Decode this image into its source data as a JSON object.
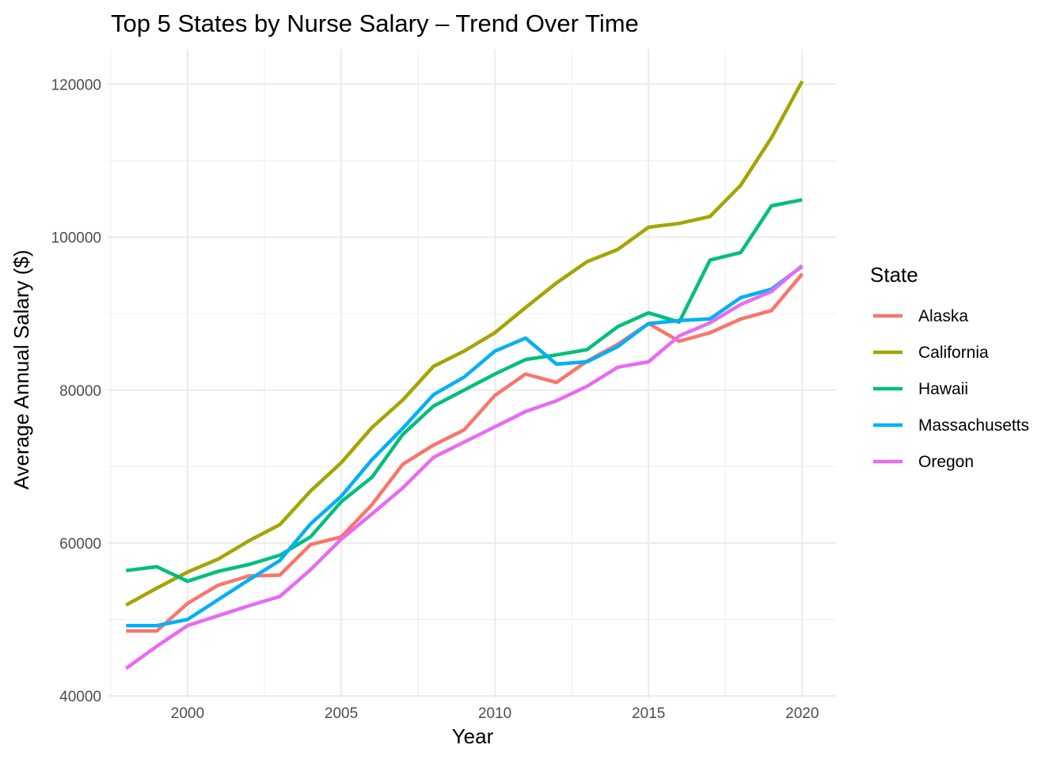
{
  "chart_data": {
    "type": "line",
    "title": "Top 5 States by Nurse Salary – Trend Over Time",
    "xlabel": "Year",
    "ylabel": "Average Annual Salary ($)",
    "xlim": [
      1997.4,
      2021.1
    ],
    "ylim": [
      39700,
      124600
    ],
    "x_ticks": [
      2000,
      2005,
      2010,
      2015,
      2020
    ],
    "y_ticks": [
      40000,
      60000,
      80000,
      100000,
      120000
    ],
    "grid": true,
    "legend_title": "State",
    "legend_position": "right",
    "x": [
      1998,
      1999,
      2000,
      2001,
      2002,
      2003,
      2004,
      2005,
      2006,
      2007,
      2008,
      2009,
      2010,
      2011,
      2012,
      2013,
      2014,
      2015,
      2016,
      2017,
      2018,
      2019,
      2020
    ],
    "series": [
      {
        "name": "Alaska",
        "color": "#F8766D",
        "values": [
          48500,
          48500,
          52100,
          54500,
          55700,
          55800,
          59800,
          60800,
          65000,
          70300,
          72800,
          74800,
          79300,
          82100,
          81000,
          83800,
          86000,
          88700,
          86400,
          87500,
          89300,
          90400,
          95200
        ]
      },
      {
        "name": "California",
        "color": "#A3A500",
        "values": [
          51900,
          54100,
          56200,
          57900,
          60300,
          62400,
          66800,
          70500,
          75100,
          78700,
          83100,
          85100,
          87500,
          90800,
          94000,
          96800,
          98400,
          101300,
          101800,
          102700,
          106800,
          113000,
          120400
        ]
      },
      {
        "name": "Hawaii",
        "color": "#00BF7D",
        "values": [
          56400,
          56900,
          55000,
          56300,
          57200,
          58400,
          60800,
          65400,
          68600,
          74200,
          77900,
          80000,
          82100,
          84000,
          84600,
          85300,
          88300,
          90100,
          88900,
          97000,
          98000,
          104100,
          104900
        ]
      },
      {
        "name": "Massachusetts",
        "color": "#00B0F6",
        "values": [
          49200,
          49200,
          50000,
          52600,
          55200,
          57700,
          62500,
          66100,
          70900,
          75000,
          79400,
          81700,
          85100,
          86800,
          83400,
          83700,
          85700,
          88700,
          89100,
          89300,
          92100,
          93200,
          96200
        ]
      },
      {
        "name": "Oregon",
        "color": "#E76BF3",
        "values": [
          43600,
          46500,
          49200,
          50500,
          51800,
          53000,
          56500,
          60500,
          63800,
          67200,
          71200,
          73200,
          75200,
          77200,
          78600,
          80500,
          83000,
          83700,
          87100,
          88800,
          91200,
          92900,
          96300
        ]
      }
    ]
  }
}
